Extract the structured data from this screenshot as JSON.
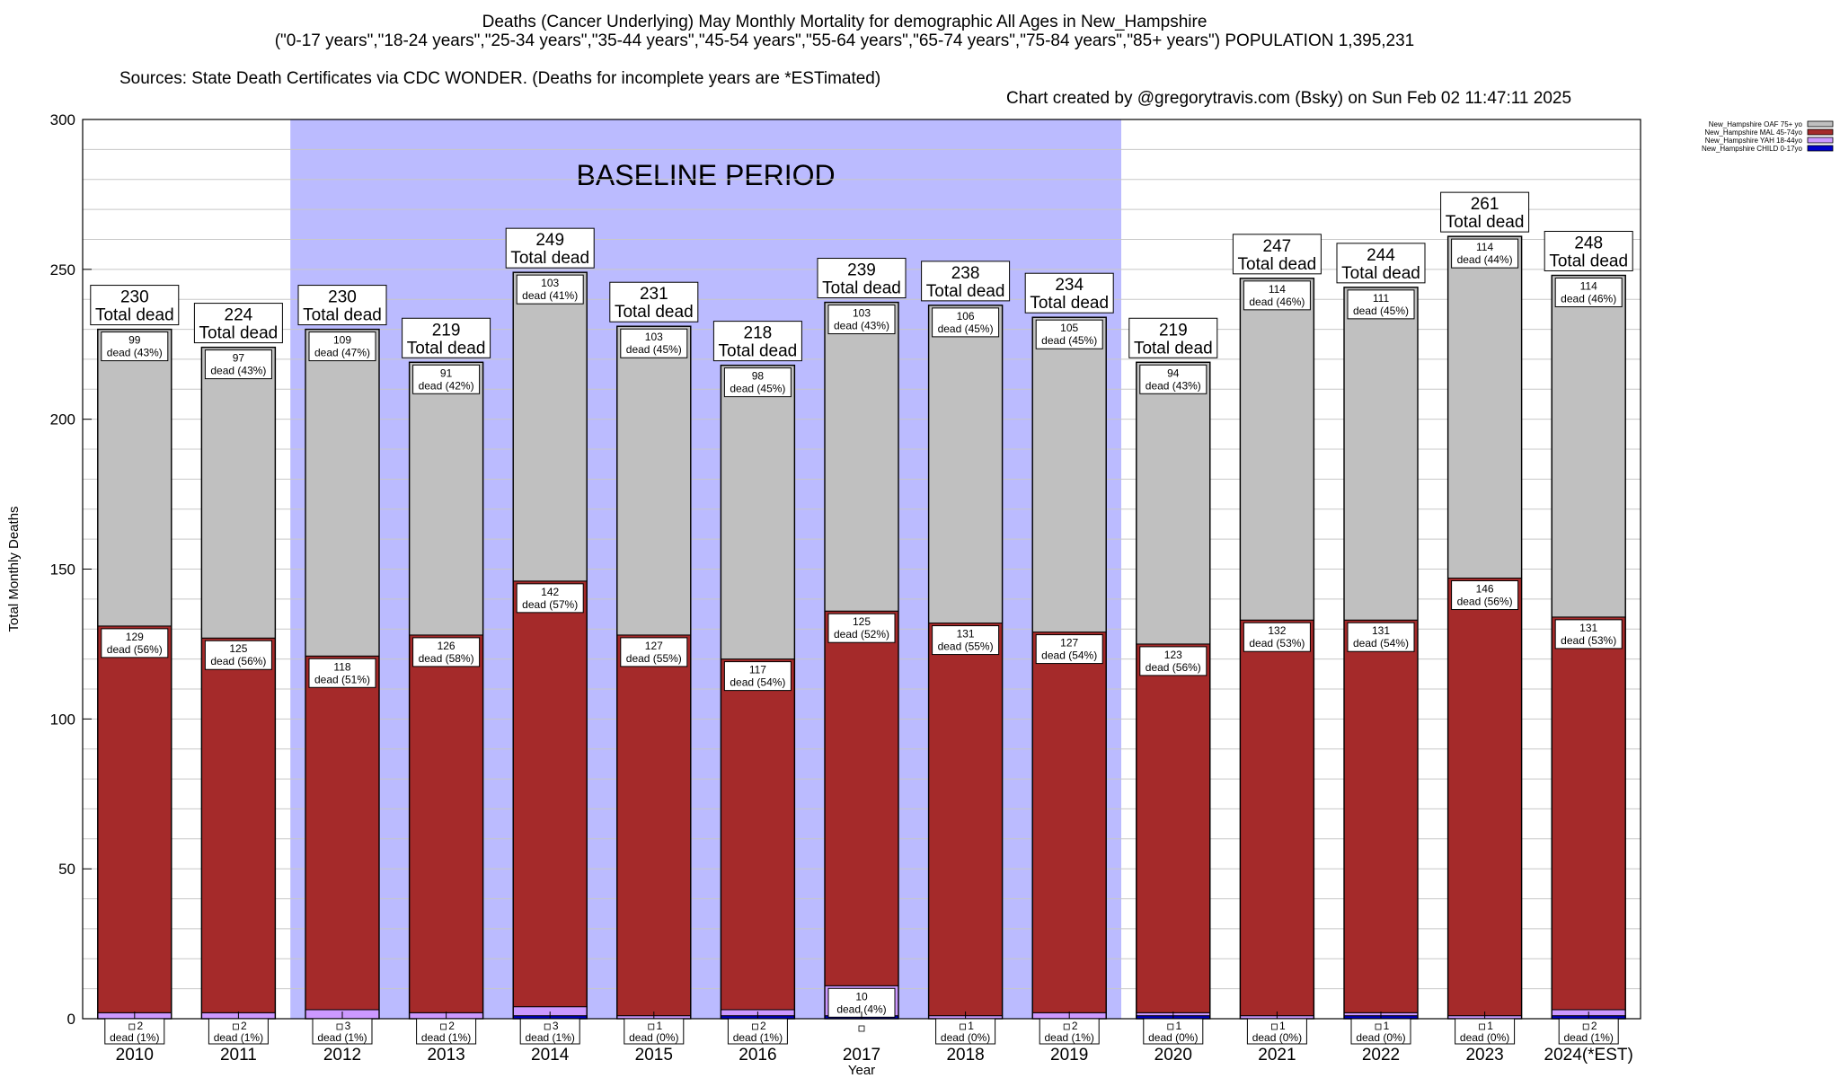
{
  "chart_data": {
    "type": "bar",
    "stacked": true,
    "title": "Deaths (Cancer Underlying) May Monthly Mortality for demographic All Ages in New_Hampshire",
    "subtitle": "(\"0-17 years\",\"18-24 years\",\"25-34 years\",\"35-44 years\",\"45-54 years\",\"55-64 years\",\"65-74 years\",\"75-84 years\",\"85+ years\") POPULATION 1,395,231",
    "source": "Sources: State Death Certificates via CDC WONDER. (Deaths for incomplete years are *ESTimated)",
    "credit": "Chart created by @gregorytravis.com (Bsky) on Sun Feb 02 11:47:11 2025",
    "xlabel": "Year",
    "ylabel": "Total Monthly Deaths",
    "ylim": [
      0,
      300
    ],
    "yticks": [
      0,
      50,
      100,
      150,
      200,
      250,
      300
    ],
    "grid": true,
    "legend_position": "top-right",
    "baseline_label": "BASELINE PERIOD",
    "baseline_range": [
      "2012",
      "2019"
    ],
    "total_label": "Total dead",
    "dead_word": "dead",
    "categories": [
      "2010",
      "2011",
      "2012",
      "2013",
      "2014",
      "2015",
      "2016",
      "2017",
      "2018",
      "2019",
      "2020",
      "2021",
      "2022",
      "2023",
      "2024(*EST)"
    ],
    "totals": [
      230,
      224,
      230,
      219,
      249,
      231,
      218,
      239,
      238,
      234,
      219,
      247,
      244,
      261,
      248
    ],
    "series": [
      {
        "name": "New_Hampshire CHILD 0-17yo",
        "color": "#0000cc",
        "values": [
          0,
          0,
          0,
          0,
          1,
          0,
          1,
          1,
          0,
          0,
          1,
          0,
          1,
          0,
          1
        ],
        "pct": [
          null,
          null,
          null,
          null,
          null,
          null,
          null,
          null,
          null,
          null,
          null,
          null,
          null,
          null,
          null
        ]
      },
      {
        "name": "New_Hampshire YAH 18-44yo",
        "color": "#cc99ff",
        "values": [
          2,
          2,
          3,
          2,
          3,
          1,
          2,
          10,
          1,
          2,
          1,
          1,
          1,
          1,
          2
        ],
        "pct": [
          "1%",
          "1%",
          "1%",
          "1%",
          "1%",
          "0%",
          "1%",
          "4%",
          "0%",
          "1%",
          "0%",
          "0%",
          "0%",
          "0%",
          "1%"
        ]
      },
      {
        "name": "New_Hampshire MAL 45-74yo",
        "color": "#a52a2a",
        "values": [
          129,
          125,
          118,
          126,
          142,
          127,
          117,
          125,
          131,
          127,
          123,
          132,
          131,
          146,
          131
        ],
        "pct": [
          "56%",
          "56%",
          "51%",
          "58%",
          "57%",
          "55%",
          "54%",
          "52%",
          "55%",
          "54%",
          "56%",
          "53%",
          "54%",
          "56%",
          "53%"
        ]
      },
      {
        "name": "New_Hampshire OAF 75+ yo",
        "color": "#c0c0c0",
        "values": [
          99,
          97,
          109,
          91,
          103,
          103,
          98,
          103,
          106,
          105,
          94,
          114,
          111,
          114,
          114
        ],
        "pct": [
          "43%",
          "43%",
          "47%",
          "42%",
          "41%",
          "45%",
          "45%",
          "43%",
          "45%",
          "45%",
          "43%",
          "46%",
          "45%",
          "44%",
          "46%"
        ]
      }
    ],
    "colors": {
      "baseline_fill": "#bbbbff",
      "grid": "#c8c8c8"
    }
  }
}
